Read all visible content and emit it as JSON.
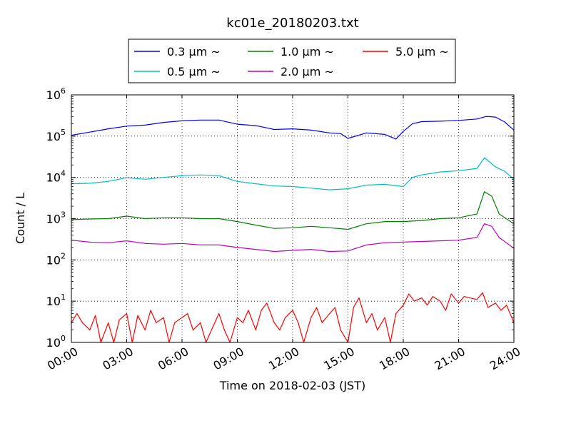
{
  "chart_data": {
    "type": "line",
    "title": "kc01e_20180203.txt",
    "xlabel": "Time on 2018-02-03 (JST)",
    "ylabel": "Count / L",
    "y_scale": "log",
    "ylim": [
      1,
      1000000
    ],
    "xlim": [
      "00:00",
      "24:00"
    ],
    "grid": true,
    "legend_placement": "top, above plot",
    "x_ticks": [
      {
        "hour": 0,
        "label": "00:00"
      },
      {
        "hour": 3,
        "label": "03:00"
      },
      {
        "hour": 6,
        "label": "06:00"
      },
      {
        "hour": 9,
        "label": "09:00"
      },
      {
        "hour": 12,
        "label": "12:00"
      },
      {
        "hour": 15,
        "label": "15:00"
      },
      {
        "hour": 18,
        "label": "18:00"
      },
      {
        "hour": 21,
        "label": "21:00"
      },
      {
        "hour": 24,
        "label": "24:00"
      }
    ],
    "y_ticks": [
      {
        "value": 1,
        "base": "10",
        "exp": "0"
      },
      {
        "value": 10,
        "base": "10",
        "exp": "1"
      },
      {
        "value": 100,
        "base": "10",
        "exp": "2"
      },
      {
        "value": 1000,
        "base": "10",
        "exp": "3"
      },
      {
        "value": 10000,
        "base": "10",
        "exp": "4"
      },
      {
        "value": 100000,
        "base": "10",
        "exp": "5"
      },
      {
        "value": 1000000,
        "base": "10",
        "exp": "6"
      }
    ],
    "series": [
      {
        "name": "0.3 μm ~",
        "color": "#0000ff",
        "points": [
          [
            0,
            105000
          ],
          [
            1,
            125000
          ],
          [
            2,
            150000
          ],
          [
            3,
            175000
          ],
          [
            4,
            185000
          ],
          [
            5,
            215000
          ],
          [
            6,
            235000
          ],
          [
            7,
            245000
          ],
          [
            8,
            245000
          ],
          [
            9,
            195000
          ],
          [
            10,
            180000
          ],
          [
            11,
            145000
          ],
          [
            12,
            150000
          ],
          [
            13,
            140000
          ],
          [
            14,
            120000
          ],
          [
            14.6,
            115000
          ],
          [
            15,
            88000
          ],
          [
            16,
            120000
          ],
          [
            17,
            110000
          ],
          [
            17.6,
            85000
          ],
          [
            18,
            130000
          ],
          [
            18.5,
            200000
          ],
          [
            19,
            225000
          ],
          [
            20,
            230000
          ],
          [
            21,
            240000
          ],
          [
            22,
            260000
          ],
          [
            22.5,
            300000
          ],
          [
            23,
            290000
          ],
          [
            23.5,
            220000
          ],
          [
            24,
            140000
          ]
        ]
      },
      {
        "name": "0.5 μm ~",
        "color": "#00bfbf",
        "points": [
          [
            0,
            7000
          ],
          [
            1,
            7200
          ],
          [
            2,
            8000
          ],
          [
            3,
            9800
          ],
          [
            4,
            9000
          ],
          [
            5,
            10000
          ],
          [
            6,
            11000
          ],
          [
            7,
            11500
          ],
          [
            8,
            11000
          ],
          [
            9,
            8000
          ],
          [
            10,
            7000
          ],
          [
            11,
            6200
          ],
          [
            12,
            6000
          ],
          [
            13,
            5500
          ],
          [
            14,
            5000
          ],
          [
            15,
            5300
          ],
          [
            16,
            6500
          ],
          [
            17,
            6800
          ],
          [
            18,
            6000
          ],
          [
            18.5,
            10000
          ],
          [
            19,
            11500
          ],
          [
            20,
            13500
          ],
          [
            21,
            14500
          ],
          [
            22,
            16500
          ],
          [
            22.4,
            30000
          ],
          [
            23,
            18000
          ],
          [
            23.5,
            14000
          ],
          [
            24,
            9000
          ]
        ]
      },
      {
        "name": "1.0 μm ~",
        "color": "#008000",
        "points": [
          [
            0,
            950
          ],
          [
            1,
            980
          ],
          [
            2,
            1000
          ],
          [
            3,
            1150
          ],
          [
            4,
            1000
          ],
          [
            5,
            1050
          ],
          [
            6,
            1050
          ],
          [
            7,
            1000
          ],
          [
            8,
            1000
          ],
          [
            9,
            850
          ],
          [
            10,
            700
          ],
          [
            11,
            580
          ],
          [
            12,
            600
          ],
          [
            13,
            650
          ],
          [
            14,
            600
          ],
          [
            15,
            550
          ],
          [
            16,
            750
          ],
          [
            17,
            850
          ],
          [
            18,
            850
          ],
          [
            19,
            900
          ],
          [
            20,
            1000
          ],
          [
            21,
            1050
          ],
          [
            22,
            1300
          ],
          [
            22.4,
            4500
          ],
          [
            22.8,
            3500
          ],
          [
            23.2,
            1300
          ],
          [
            24,
            750
          ]
        ]
      },
      {
        "name": "2.0 μm ~",
        "color": "#bf00bf",
        "points": [
          [
            0,
            300
          ],
          [
            1,
            270
          ],
          [
            2,
            260
          ],
          [
            3,
            290
          ],
          [
            4,
            250
          ],
          [
            5,
            240
          ],
          [
            6,
            250
          ],
          [
            7,
            230
          ],
          [
            8,
            230
          ],
          [
            9,
            200
          ],
          [
            10,
            180
          ],
          [
            11,
            160
          ],
          [
            12,
            170
          ],
          [
            13,
            180
          ],
          [
            14,
            160
          ],
          [
            15,
            165
          ],
          [
            16,
            230
          ],
          [
            17,
            260
          ],
          [
            18,
            270
          ],
          [
            19,
            280
          ],
          [
            20,
            290
          ],
          [
            21,
            300
          ],
          [
            22,
            350
          ],
          [
            22.4,
            750
          ],
          [
            22.8,
            650
          ],
          [
            23.2,
            350
          ],
          [
            24,
            190
          ]
        ]
      },
      {
        "name": "5.0 μm ~",
        "color": "#ff0000",
        "points": [
          [
            0,
            3
          ],
          [
            0.3,
            5
          ],
          [
            0.6,
            3
          ],
          [
            1,
            2
          ],
          [
            1.3,
            4.5
          ],
          [
            1.6,
            1
          ],
          [
            2,
            3
          ],
          [
            2.3,
            1
          ],
          [
            2.6,
            3.5
          ],
          [
            3,
            5
          ],
          [
            3.3,
            1
          ],
          [
            3.6,
            4.5
          ],
          [
            4,
            2
          ],
          [
            4.3,
            6
          ],
          [
            4.6,
            3
          ],
          [
            5,
            4
          ],
          [
            5.3,
            1
          ],
          [
            5.6,
            3
          ],
          [
            6,
            4
          ],
          [
            6.3,
            5
          ],
          [
            6.6,
            2
          ],
          [
            7,
            3
          ],
          [
            7.3,
            1
          ],
          [
            7.6,
            2
          ],
          [
            8,
            5
          ],
          [
            8.3,
            2
          ],
          [
            8.6,
            1
          ],
          [
            9,
            4
          ],
          [
            9.3,
            3
          ],
          [
            9.6,
            6
          ],
          [
            10,
            2
          ],
          [
            10.3,
            6
          ],
          [
            10.6,
            9
          ],
          [
            11,
            3
          ],
          [
            11.3,
            2
          ],
          [
            11.6,
            4
          ],
          [
            12,
            6
          ],
          [
            12.3,
            3
          ],
          [
            12.6,
            1
          ],
          [
            13,
            4
          ],
          [
            13.3,
            7
          ],
          [
            13.6,
            3
          ],
          [
            14,
            5
          ],
          [
            14.3,
            7
          ],
          [
            14.6,
            2
          ],
          [
            15,
            1
          ],
          [
            15.3,
            7
          ],
          [
            15.6,
            12
          ],
          [
            16,
            3
          ],
          [
            16.3,
            5
          ],
          [
            16.6,
            2
          ],
          [
            17,
            4
          ],
          [
            17.3,
            1
          ],
          [
            17.6,
            5
          ],
          [
            18,
            8
          ],
          [
            18.3,
            15
          ],
          [
            18.6,
            10
          ],
          [
            19,
            12
          ],
          [
            19.3,
            8
          ],
          [
            19.6,
            13
          ],
          [
            20,
            10
          ],
          [
            20.3,
            6
          ],
          [
            20.6,
            15
          ],
          [
            21,
            9
          ],
          [
            21.3,
            13
          ],
          [
            21.6,
            12
          ],
          [
            22,
            11
          ],
          [
            22.3,
            16
          ],
          [
            22.6,
            7
          ],
          [
            23,
            9
          ],
          [
            23.3,
            6
          ],
          [
            23.6,
            8
          ],
          [
            24,
            3
          ]
        ]
      }
    ]
  }
}
